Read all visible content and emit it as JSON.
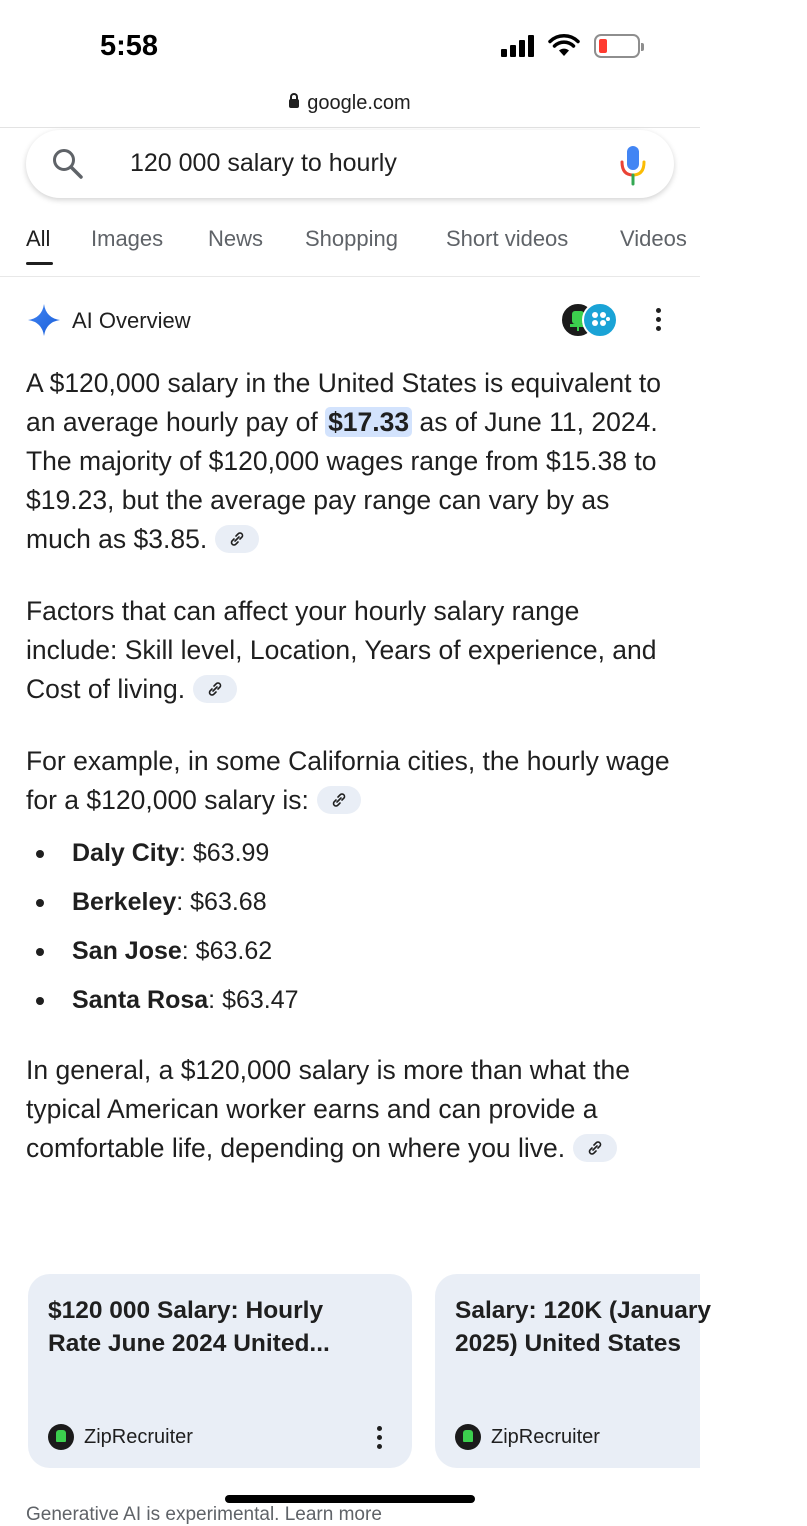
{
  "status_bar": {
    "time": "5:58"
  },
  "browser": {
    "url": "google.com"
  },
  "search": {
    "query": "120 000 salary to hourly"
  },
  "tabs": [
    {
      "label": "All"
    },
    {
      "label": "Images"
    },
    {
      "label": "News"
    },
    {
      "label": "Shopping"
    },
    {
      "label": "Short videos"
    },
    {
      "label": "Videos"
    }
  ],
  "ai_overview": {
    "title": "AI Overview",
    "para1": {
      "before": "A $120,000 salary in the United States is equivalent to an average hourly pay of ",
      "highlight": "$17.33",
      "after": " as of June 11, 2024. The majority of $120,000 wages range from $15.38 to $19.23, but the average pay range can vary by as much as $3.85."
    },
    "para2": "Factors that can affect your hourly salary range include: Skill level, Location, Years of experience, and Cost of living.",
    "para3": "For example, in some California cities, the hourly wage for a $120,000 salary is:",
    "cities": [
      {
        "name": "Daly City",
        "value": ": $63.99"
      },
      {
        "name": "Berkeley",
        "value": ": $63.68"
      },
      {
        "name": "San Jose",
        "value": ": $63.62"
      },
      {
        "name": "Santa Rosa",
        "value": ": $63.47"
      }
    ],
    "para4": "In general, a $120,000 salary is more than what the typical American worker earns and can provide a comfortable life, depending on where you live."
  },
  "source_cards": [
    {
      "title": "$120 000 Salary: Hourly\nRate June 2024 United...",
      "source": "ZipRecruiter"
    },
    {
      "title": "Salary: 120K (January\n2025) United States",
      "source": "ZipRecruiter"
    }
  ],
  "footer": {
    "note": "Generative AI is experimental. Learn more"
  },
  "colors": {
    "accent": "#1a73e8",
    "highlight": "#d3e3fd",
    "card_bg": "#e9eef6"
  }
}
